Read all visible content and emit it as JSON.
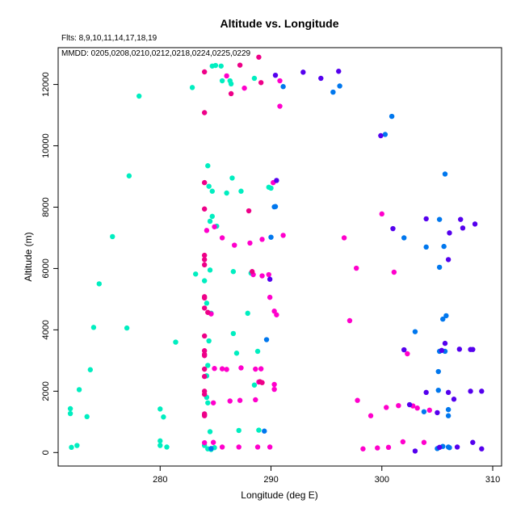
{
  "chart_data": {
    "type": "scatter",
    "title": "Altitude vs. Longitude",
    "annotations": [
      "Flts: 8,9,10,11,14,17,18,19",
      "MMDD: 0205,0208,0210,0212,0218,0224,0225,0229"
    ],
    "xlabel": "Longitude (deg E)",
    "ylabel": "Altitude (m)",
    "xlim": [
      270.8,
      310.8
    ],
    "ylim": [
      -440,
      13200
    ],
    "xticks": [
      280,
      290,
      300,
      310
    ],
    "yticks": [
      0,
      2000,
      4000,
      6000,
      8000,
      10000,
      12000
    ],
    "grid": false,
    "series": [
      {
        "color": "#00eec0",
        "points": [
          [
            278.1,
            11620
          ],
          [
            282.9,
            11900
          ],
          [
            284.7,
            12600
          ],
          [
            285.0,
            12620
          ],
          [
            285.5,
            12600
          ],
          [
            285.6,
            12120
          ],
          [
            286.3,
            12120
          ],
          [
            286.4,
            12020
          ],
          [
            288.5,
            12200
          ],
          [
            277.2,
            9020
          ],
          [
            284.3,
            9350
          ],
          [
            286.5,
            8950
          ],
          [
            287.3,
            8520
          ],
          [
            286.0,
            8460
          ],
          [
            284.4,
            8680
          ],
          [
            284.7,
            8520
          ],
          [
            289.8,
            8650
          ],
          [
            290.0,
            8620
          ],
          [
            275.7,
            7040
          ],
          [
            284.5,
            7540
          ],
          [
            284.7,
            7700
          ],
          [
            285.1,
            7380
          ],
          [
            274.5,
            5500
          ],
          [
            283.2,
            5820
          ],
          [
            284.0,
            5600
          ],
          [
            284.5,
            5950
          ],
          [
            286.6,
            5900
          ],
          [
            288.2,
            5850
          ],
          [
            274.0,
            4080
          ],
          [
            277.0,
            4060
          ],
          [
            281.4,
            3600
          ],
          [
            284.2,
            4870
          ],
          [
            284.6,
            4540
          ],
          [
            287.9,
            4540
          ],
          [
            284.4,
            3640
          ],
          [
            286.6,
            3880
          ],
          [
            286.9,
            3240
          ],
          [
            288.8,
            3300
          ],
          [
            273.7,
            2700
          ],
          [
            272.7,
            2050
          ],
          [
            284.3,
            2840
          ],
          [
            284.2,
            2500
          ],
          [
            288.5,
            2200
          ],
          [
            284.2,
            1800
          ],
          [
            284.3,
            1620
          ],
          [
            271.9,
            1430
          ],
          [
            271.9,
            1270
          ],
          [
            273.4,
            1170
          ],
          [
            280.0,
            1420
          ],
          [
            280.3,
            1160
          ],
          [
            284.5,
            680
          ],
          [
            287.1,
            720
          ],
          [
            288.9,
            730
          ],
          [
            280.0,
            380
          ],
          [
            280.0,
            230
          ],
          [
            280.6,
            180
          ],
          [
            272.0,
            170
          ],
          [
            272.5,
            230
          ],
          [
            284.0,
            230
          ],
          [
            284.3,
            120
          ],
          [
            284.6,
            100
          ],
          [
            284.9,
            160
          ]
        ]
      },
      {
        "color": "#ff00cc",
        "points": [
          [
            286.0,
            12280
          ],
          [
            287.6,
            11880
          ],
          [
            290.8,
            12120
          ],
          [
            290.8,
            11290
          ],
          [
            290.2,
            8800
          ],
          [
            284.2,
            7240
          ],
          [
            284.9,
            7360
          ],
          [
            285.6,
            7000
          ],
          [
            286.7,
            6760
          ],
          [
            288.1,
            6830
          ],
          [
            289.2,
            6950
          ],
          [
            291.1,
            7080
          ],
          [
            296.6,
            7000
          ],
          [
            300.0,
            7780
          ],
          [
            297.7,
            6010
          ],
          [
            301.1,
            5880
          ],
          [
            288.4,
            5800
          ],
          [
            289.2,
            5760
          ],
          [
            289.8,
            5800
          ],
          [
            289.9,
            5060
          ],
          [
            290.3,
            4610
          ],
          [
            290.5,
            4490
          ],
          [
            297.1,
            4300
          ],
          [
            284.6,
            4520
          ],
          [
            284.9,
            2740
          ],
          [
            285.6,
            2730
          ],
          [
            286.0,
            2710
          ],
          [
            287.3,
            2760
          ],
          [
            288.6,
            2720
          ],
          [
            289.1,
            2730
          ],
          [
            288.9,
            2300
          ],
          [
            290.3,
            2220
          ],
          [
            290.3,
            2060
          ],
          [
            302.3,
            3220
          ],
          [
            284.8,
            1620
          ],
          [
            286.3,
            1680
          ],
          [
            287.2,
            1700
          ],
          [
            288.6,
            1720
          ],
          [
            297.8,
            1700
          ],
          [
            300.4,
            1470
          ],
          [
            301.5,
            1530
          ],
          [
            302.8,
            1520
          ],
          [
            303.2,
            1450
          ],
          [
            304.3,
            1380
          ],
          [
            299.0,
            1200
          ],
          [
            284.8,
            330
          ],
          [
            285.6,
            180
          ],
          [
            287.1,
            180
          ],
          [
            288.8,
            180
          ],
          [
            289.9,
            180
          ],
          [
            298.3,
            120
          ],
          [
            299.6,
            150
          ],
          [
            300.6,
            170
          ],
          [
            301.9,
            350
          ],
          [
            303.8,
            330
          ],
          [
            284.0,
            320
          ]
        ]
      },
      {
        "color": "#ee0088",
        "points": [
          [
            284.0,
            12410
          ],
          [
            287.2,
            12630
          ],
          [
            288.9,
            12890
          ],
          [
            286.4,
            11700
          ],
          [
            289.1,
            12060
          ],
          [
            284.0,
            11080
          ],
          [
            284.0,
            8800
          ],
          [
            284.0,
            7940
          ],
          [
            288.0,
            7880
          ],
          [
            284.0,
            6430
          ],
          [
            284.0,
            6290
          ],
          [
            284.0,
            6120
          ],
          [
            288.3,
            5900
          ],
          [
            284.0,
            5080
          ],
          [
            284.0,
            5040
          ],
          [
            284.0,
            4710
          ],
          [
            284.3,
            4570
          ],
          [
            284.0,
            3800
          ],
          [
            284.0,
            3320
          ],
          [
            284.0,
            3200
          ],
          [
            284.0,
            3160
          ],
          [
            284.0,
            2720
          ],
          [
            284.0,
            2480
          ],
          [
            284.0,
            2000
          ],
          [
            284.0,
            1900
          ],
          [
            284.0,
            1260
          ],
          [
            284.0,
            1230
          ],
          [
            284.0,
            1200
          ],
          [
            289.0,
            2310
          ],
          [
            289.2,
            2280
          ]
        ]
      },
      {
        "color": "#0077ee",
        "points": [
          [
            291.1,
            11930
          ],
          [
            295.6,
            11750
          ],
          [
            296.2,
            11950
          ],
          [
            300.3,
            10370
          ],
          [
            300.9,
            10960
          ],
          [
            305.7,
            9080
          ],
          [
            290.3,
            8010
          ],
          [
            290.4,
            8020
          ],
          [
            290.0,
            7020
          ],
          [
            302.0,
            7000
          ],
          [
            305.2,
            7600
          ],
          [
            305.6,
            6720
          ],
          [
            304.0,
            6700
          ],
          [
            305.2,
            6040
          ],
          [
            305.8,
            4460
          ],
          [
            305.5,
            4350
          ],
          [
            305.7,
            3300
          ],
          [
            305.2,
            3300
          ],
          [
            303.0,
            3940
          ],
          [
            289.6,
            3680
          ],
          [
            305.1,
            2640
          ],
          [
            305.1,
            2030
          ],
          [
            306.0,
            1400
          ],
          [
            306.0,
            1200
          ],
          [
            303.8,
            1330
          ],
          [
            305.5,
            200
          ],
          [
            306.0,
            180
          ],
          [
            306.1,
            160
          ],
          [
            305.0,
            130
          ],
          [
            284.6,
            130
          ],
          [
            289.4,
            700
          ]
        ]
      },
      {
        "color": "#5500ee",
        "points": [
          [
            290.4,
            12300
          ],
          [
            292.9,
            12400
          ],
          [
            294.5,
            12200
          ],
          [
            296.1,
            12430
          ],
          [
            299.9,
            10330
          ],
          [
            290.5,
            8870
          ],
          [
            304.0,
            7620
          ],
          [
            307.1,
            7600
          ],
          [
            308.4,
            7450
          ],
          [
            307.3,
            7320
          ],
          [
            301.0,
            7300
          ],
          [
            306.1,
            7160
          ],
          [
            306.0,
            6290
          ],
          [
            289.9,
            5650
          ],
          [
            305.7,
            3560
          ],
          [
            305.4,
            3330
          ],
          [
            302.0,
            3350
          ],
          [
            307.0,
            3370
          ],
          [
            308.0,
            3360
          ],
          [
            308.2,
            3360
          ],
          [
            304.0,
            1960
          ],
          [
            306.0,
            1960
          ],
          [
            308.0,
            2000
          ],
          [
            309.0,
            2000
          ],
          [
            306.5,
            1740
          ],
          [
            302.5,
            1560
          ],
          [
            305.0,
            1300
          ],
          [
            303.0,
            50
          ],
          [
            305.2,
            170
          ],
          [
            306.8,
            180
          ],
          [
            308.2,
            330
          ],
          [
            309.0,
            120
          ]
        ]
      }
    ]
  }
}
